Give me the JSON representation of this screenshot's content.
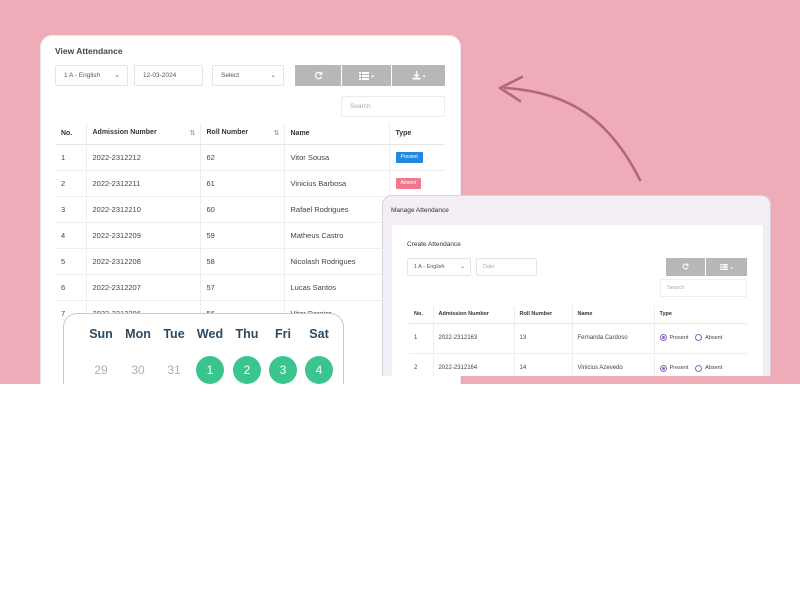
{
  "view": {
    "title": "View Attendance",
    "class_select": "1 A - English",
    "date": "12-03-2024",
    "select": "Select",
    "search_placeholder": "Search",
    "columns": [
      "No.",
      "Admission Number",
      "Roll Number",
      "Name",
      "Type"
    ],
    "rows": [
      {
        "no": "1",
        "admission": "2022-2312212",
        "roll": "62",
        "name": "Vitor Sousa",
        "type": "Present"
      },
      {
        "no": "2",
        "admission": "2022-2312211",
        "roll": "61",
        "name": "Vinicius Barbosa",
        "type": "Absent"
      },
      {
        "no": "3",
        "admission": "2022-2312210",
        "roll": "60",
        "name": "Rafael Rodrigues",
        "type": ""
      },
      {
        "no": "4",
        "admission": "2022-2312209",
        "roll": "59",
        "name": "Matheus Castro",
        "type": ""
      },
      {
        "no": "5",
        "admission": "2022-2312208",
        "roll": "58",
        "name": "Nicolash Rodrigues",
        "type": ""
      },
      {
        "no": "6",
        "admission": "2022-2312207",
        "roll": "57",
        "name": "Lucas Santos",
        "type": ""
      },
      {
        "no": "7",
        "admission": "2022-2312206",
        "roll": "56",
        "name": "Vitor Pereira",
        "type": ""
      }
    ],
    "colors": {
      "present": "#2187df",
      "absent": "#f0788c",
      "button": "#b7b7b7"
    },
    "icons": [
      "refresh-icon",
      "list-icon",
      "download-icon"
    ]
  },
  "calendar": {
    "days": [
      "Sun",
      "Mon",
      "Tue",
      "Wed",
      "Thu",
      "Fri",
      "Sat"
    ],
    "dates": [
      "29",
      "30",
      "31",
      "1",
      "2",
      "3",
      "4"
    ],
    "active_color": "#3bc58e"
  },
  "manage": {
    "title": "Manage Attendance",
    "subtitle": "Create Attendance",
    "class_select": "1 A - English",
    "date_placeholder": "Date",
    "search_placeholder": "Search",
    "columns": [
      "No.",
      "Admission Number",
      "Roll Number",
      "Name",
      "Type"
    ],
    "rows": [
      {
        "no": "1",
        "admission": "2022-2312163",
        "roll": "13",
        "name": "Fernanda Cardoso"
      },
      {
        "no": "2",
        "admission": "2022-2312164",
        "roll": "14",
        "name": "Vinicius Azevedo"
      }
    ],
    "present_label": "Present",
    "absent_label": "Absent",
    "accent": "#8d63c7"
  },
  "background": {
    "pink": "#eeacb9"
  }
}
